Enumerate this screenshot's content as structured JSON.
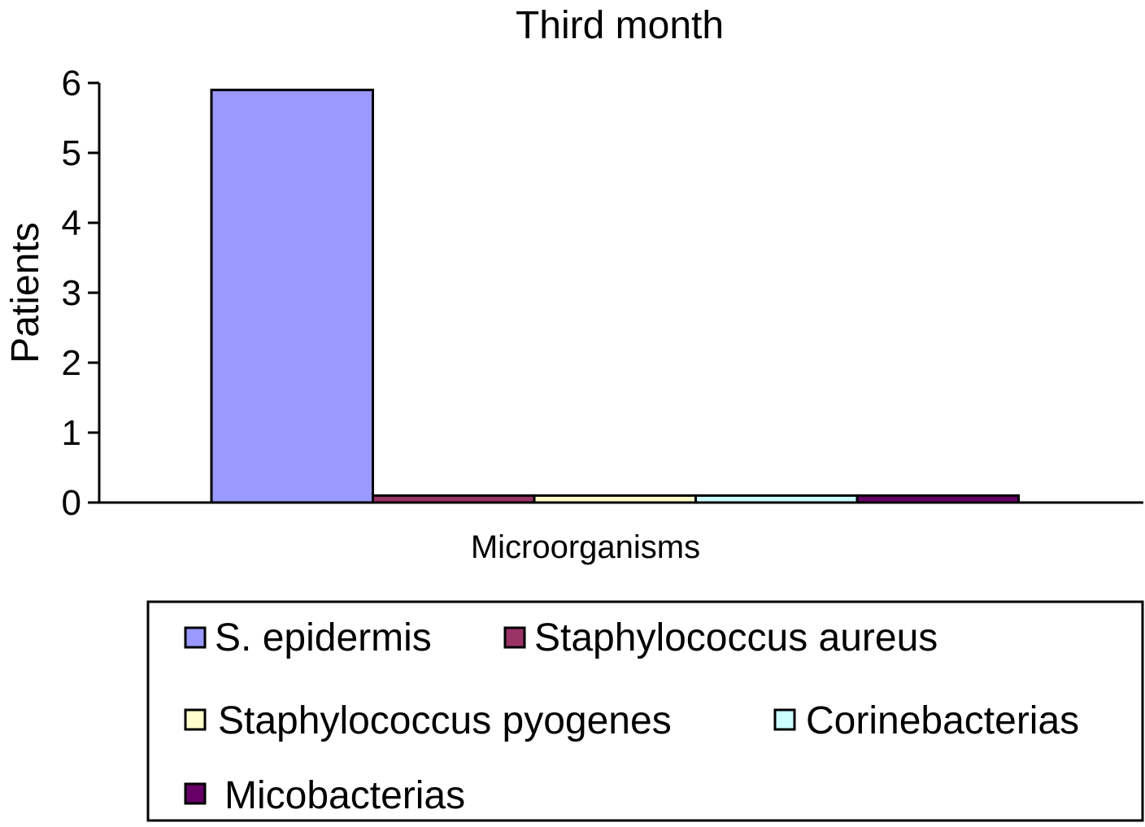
{
  "chart_data": {
    "type": "bar",
    "title": "Third month",
    "xlabel": "Microorganisms",
    "ylabel": "Patients",
    "ylim": [
      0,
      6
    ],
    "yticks": [
      "0",
      "1",
      "2",
      "3",
      "4",
      "5",
      "6"
    ],
    "grid": false,
    "legend_position": "bottom",
    "series": [
      {
        "name": "S. epidermis",
        "value": 5.9,
        "color": "#9999ff"
      },
      {
        "name": "Staphylococcus aureus",
        "value": 0.1,
        "color": "#993366"
      },
      {
        "name": "Staphylococcus pyogenes",
        "value": 0.1,
        "color": "#ffffcc"
      },
      {
        "name": "Corinebacterias",
        "value": 0.1,
        "color": "#ccffff"
      },
      {
        "name": "Micobacterias",
        "value": 0.1,
        "color": "#660066"
      }
    ]
  }
}
